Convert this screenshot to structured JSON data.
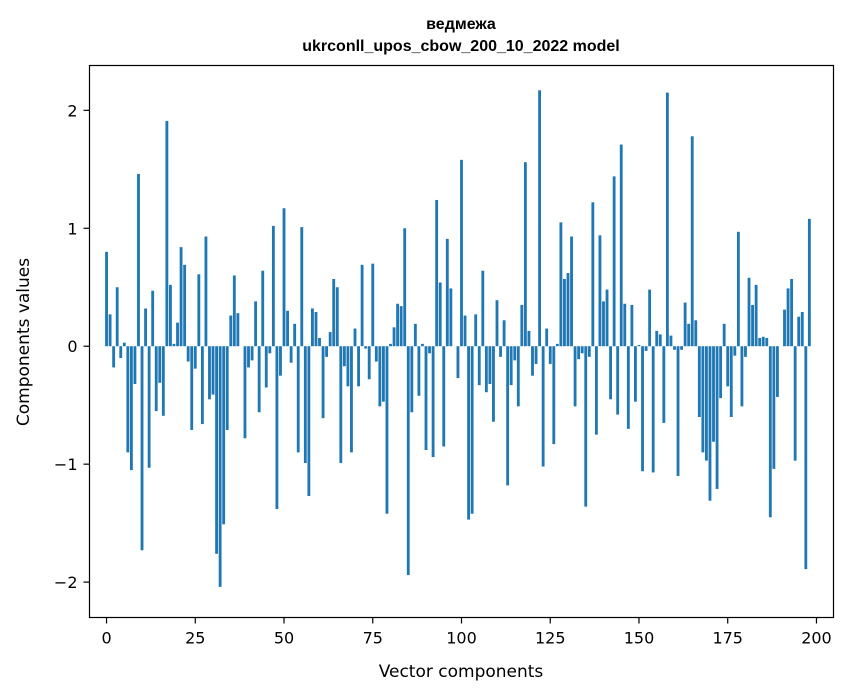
{
  "chart_data": {
    "type": "bar",
    "title_line1": "ведмежа",
    "title_line2": "ukrconll_upos_cbow_200_10_2022 model",
    "xlabel": "Vector components",
    "ylabel": "Components values",
    "x_ticks": [
      0,
      25,
      50,
      75,
      100,
      125,
      150,
      175,
      200
    ],
    "x_tick_labels": [
      "0",
      "25",
      "50",
      "75",
      "100",
      "125",
      "150",
      "175",
      "200"
    ],
    "y_ticks": [
      -2,
      -1,
      0,
      1,
      2
    ],
    "y_tick_labels": [
      "−2",
      "−1",
      "0",
      "1",
      "2"
    ],
    "xlim": [
      -4.8,
      204.8
    ],
    "ylim": [
      -2.3,
      2.38
    ],
    "bar_color": "#1f77b4",
    "values": [
      0.8,
      0.27,
      -0.18,
      0.5,
      -0.1,
      0.03,
      -0.9,
      -1.05,
      -0.32,
      1.46,
      -1.73,
      0.32,
      -1.03,
      0.47,
      -0.55,
      -0.31,
      -0.59,
      1.91,
      0.52,
      0.02,
      0.2,
      0.84,
      0.69,
      -0.13,
      -0.71,
      -0.19,
      0.61,
      -0.66,
      0.93,
      -0.45,
      -0.41,
      -1.76,
      -2.04,
      -1.51,
      -0.71,
      0.26,
      0.6,
      0.28,
      0.0,
      -0.78,
      -0.18,
      -0.12,
      0.38,
      -0.56,
      0.64,
      -0.35,
      -0.06,
      1.02,
      -1.38,
      -0.25,
      1.17,
      0.3,
      -0.14,
      0.19,
      -0.9,
      1.01,
      -0.99,
      -1.27,
      0.32,
      0.29,
      0.07,
      -0.61,
      -0.09,
      0.12,
      0.57,
      0.5,
      -0.99,
      -0.17,
      -0.34,
      -0.9,
      0.15,
      -0.34,
      0.69,
      -0.02,
      -0.28,
      0.7,
      -0.13,
      -0.51,
      -0.47,
      -1.42,
      0.02,
      0.16,
      0.36,
      0.34,
      1.0,
      -1.94,
      -0.56,
      0.19,
      -0.42,
      0.02,
      -0.88,
      -0.06,
      -0.94,
      1.24,
      0.54,
      -0.85,
      0.91,
      0.49,
      0.0,
      -0.27,
      1.58,
      0.26,
      -1.47,
      -1.42,
      0.27,
      -0.33,
      0.64,
      -0.39,
      -0.32,
      -0.64,
      0.39,
      -0.09,
      0.22,
      -1.18,
      -0.33,
      -0.12,
      -0.51,
      0.35,
      1.56,
      0.13,
      -0.25,
      -0.15,
      2.17,
      -1.02,
      0.15,
      -0.15,
      -0.83,
      0.02,
      1.05,
      0.57,
      0.62,
      0.93,
      -0.51,
      -0.11,
      -0.06,
      -1.36,
      -0.09,
      1.22,
      -0.75,
      0.94,
      0.38,
      0.48,
      -0.45,
      1.44,
      -0.58,
      1.71,
      0.36,
      -0.7,
      0.35,
      -0.47,
      0.01,
      -1.06,
      -0.04,
      0.48,
      -1.07,
      0.13,
      0.1,
      -0.65,
      2.15,
      0.09,
      -0.03,
      -1.1,
      -0.03,
      0.37,
      0.19,
      1.78,
      0.22,
      -0.6,
      -0.9,
      -0.97,
      -1.31,
      -0.81,
      -1.21,
      -0.44,
      0.19,
      -0.34,
      -0.6,
      -0.08,
      0.97,
      -0.51,
      -0.09,
      0.58,
      0.35,
      0.52,
      0.07,
      0.08,
      0.07,
      -1.45,
      -1.04,
      -0.43,
      0.0,
      0.31,
      0.49,
      0.57,
      -0.97,
      0.25,
      0.29,
      -1.89,
      1.08
    ]
  }
}
